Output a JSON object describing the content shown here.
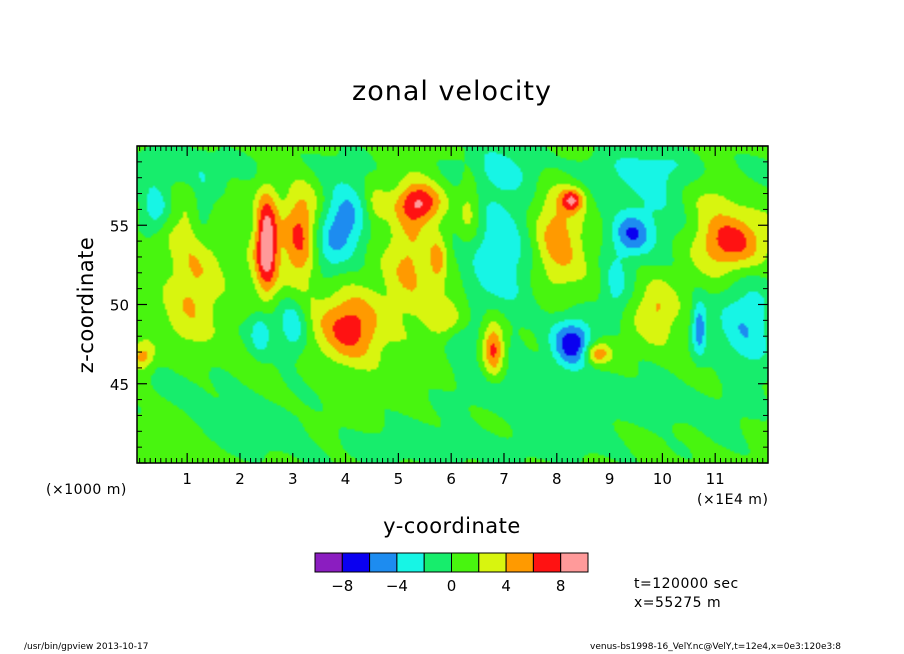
{
  "chart_data": {
    "type": "heatmap",
    "title": "zonal velocity",
    "xlabel": "y-coordinate",
    "ylabel": "z-coordinate",
    "x_unit_left": "(×1000 m)",
    "x_unit_right": "(×1E4 m)",
    "xlim": [
      0.05,
      12.0
    ],
    "ylim": [
      40,
      60
    ],
    "x_ticks": [
      {
        "value": 1,
        "label": "1"
      },
      {
        "value": 2,
        "label": "2"
      },
      {
        "value": 3,
        "label": "3"
      },
      {
        "value": 4,
        "label": "4"
      },
      {
        "value": 5,
        "label": "5"
      },
      {
        "value": 6,
        "label": "6"
      },
      {
        "value": 7,
        "label": "7"
      },
      {
        "value": 8,
        "label": "8"
      },
      {
        "value": 9,
        "label": "9"
      },
      {
        "value": 10,
        "label": "10"
      },
      {
        "value": 11,
        "label": "11"
      }
    ],
    "y_ticks": [
      {
        "value": 45,
        "label": "45"
      },
      {
        "value": 50,
        "label": "50"
      },
      {
        "value": 55,
        "label": "55"
      }
    ],
    "levels": [
      -10,
      -8,
      -6,
      -4,
      -2,
      0,
      2,
      4,
      6,
      8,
      10
    ],
    "colorbar": {
      "colors": [
        "#8b1dc0",
        "#0a00f0",
        "#1d8cf0",
        "#17f5e5",
        "#17ed6c",
        "#48f50f",
        "#d8f50f",
        "#ff9a00",
        "#ff1212",
        "#ff9a9a"
      ],
      "tick_labels": [
        "−8",
        "−4",
        "0",
        "4",
        "8"
      ],
      "tick_values": [
        -8,
        -4,
        0,
        4,
        8
      ]
    },
    "background_value": 0.8,
    "features": [
      {
        "y": 2.5,
        "z": 54.0,
        "amp": 9.5,
        "sy": 0.15,
        "sz": 2.2
      },
      {
        "y": 3.15,
        "z": 54.2,
        "amp": 6.0,
        "sy": 0.25,
        "sz": 2.3
      },
      {
        "y": 4.0,
        "z": 55.4,
        "amp": -6.0,
        "sy": 0.3,
        "sz": 1.6
      },
      {
        "y": 5.4,
        "z": 56.4,
        "amp": 7.0,
        "sy": 0.3,
        "sz": 0.9
      },
      {
        "y": 4.1,
        "z": 48.5,
        "amp": 6.0,
        "sy": 0.42,
        "sz": 1.6
      },
      {
        "y": 6.8,
        "z": 47.2,
        "amp": 7.0,
        "sy": 0.15,
        "sz": 1.3
      },
      {
        "y": 8.3,
        "z": 47.5,
        "amp": -8.0,
        "sy": 0.28,
        "sz": 1.1
      },
      {
        "y": 8.75,
        "z": 46.9,
        "amp": 6.0,
        "sy": 0.18,
        "sz": 0.5
      },
      {
        "y": 11.3,
        "z": 54.0,
        "amp": 6.5,
        "sy": 0.45,
        "sz": 1.3
      },
      {
        "y": 9.8,
        "z": 56.0,
        "amp": -3.2,
        "sy": 0.55,
        "sz": 2.0
      },
      {
        "y": 9.4,
        "z": 54.4,
        "amp": -5.2,
        "sy": 0.25,
        "sz": 0.9
      },
      {
        "y": 6.9,
        "z": 53.6,
        "amp": -4.2,
        "sy": 0.5,
        "sz": 4.0
      },
      {
        "y": 8.0,
        "z": 54.6,
        "amp": 4.8,
        "sy": 0.33,
        "sz": 2.2
      },
      {
        "y": 8.3,
        "z": 56.6,
        "amp": 6.2,
        "sy": 0.15,
        "sz": 0.5
      },
      {
        "y": 0.4,
        "z": 56.0,
        "amp": -4.5,
        "sy": 0.2,
        "sz": 1.0
      },
      {
        "y": 1.3,
        "z": 56.0,
        "amp": -3.3,
        "sy": 0.15,
        "sz": 1.4
      },
      {
        "y": 1.1,
        "z": 51.8,
        "amp": 3.6,
        "sy": 0.35,
        "sz": 3.0
      },
      {
        "y": 2.4,
        "z": 48.2,
        "amp": -4.4,
        "sy": 0.15,
        "sz": 0.9
      },
      {
        "y": 3.0,
        "z": 48.8,
        "amp": -4.4,
        "sy": 0.2,
        "sz": 1.4
      },
      {
        "y": 5.2,
        "z": 52.8,
        "amp": 3.2,
        "sy": 0.3,
        "sz": 3.0
      },
      {
        "y": 5.9,
        "z": 49.0,
        "amp": 3.2,
        "sy": 0.3,
        "sz": 1.3
      },
      {
        "y": 6.35,
        "z": 56.0,
        "amp": 3.0,
        "sy": 0.15,
        "sz": 1.8
      },
      {
        "y": 6.15,
        "z": 47.8,
        "amp": -3.2,
        "sy": 0.25,
        "sz": 0.8
      },
      {
        "y": 5.75,
        "z": 52.8,
        "amp": 3.5,
        "sy": 0.12,
        "sz": 1.2
      },
      {
        "y": 9.9,
        "z": 49.8,
        "amp": 3.3,
        "sy": 0.25,
        "sz": 1.4
      },
      {
        "y": 11.6,
        "z": 48.6,
        "amp": -4.3,
        "sy": 0.4,
        "sz": 2.5
      },
      {
        "y": 10.7,
        "z": 48.5,
        "amp": -6.0,
        "sy": 0.1,
        "sz": 1.2
      },
      {
        "y": 0.15,
        "z": 46.7,
        "amp": 4.5,
        "sy": 0.15,
        "sz": 0.6
      },
      {
        "y": 3.6,
        "z": 53.6,
        "amp": -3.0,
        "sy": 0.25,
        "sz": 1.5
      },
      {
        "y": 9.1,
        "z": 51.0,
        "amp": -3.4,
        "sy": 0.2,
        "sz": 1.5
      },
      {
        "y": 10.9,
        "z": 57.0,
        "amp": 2.2,
        "sy": 0.4,
        "sz": 1.3
      },
      {
        "y": 4.55,
        "z": 56.2,
        "amp": 2.4,
        "sy": 0.15,
        "sz": 1.0
      },
      {
        "y": 7.5,
        "z": 44.5,
        "amp": -1.6,
        "sy": 1.5,
        "sz": 1.5
      },
      {
        "y": 1.5,
        "z": 44.5,
        "amp": -1.2,
        "sy": 1.2,
        "sz": 1.5
      },
      {
        "y": 0.6,
        "z": 58.6,
        "amp": -2.0,
        "sy": 2.0,
        "sz": 1.0
      },
      {
        "y": 9.5,
        "z": 58.6,
        "amp": -2.0,
        "sy": 2.5,
        "sz": 1.0
      },
      {
        "y": 6.0,
        "z": 41.0,
        "amp": -1.6,
        "sy": 3.0,
        "sz": 1.0
      },
      {
        "y": 2.3,
        "z": 42.5,
        "amp": -1.4,
        "sy": 0.8,
        "sz": 0.8
      },
      {
        "y": 10.2,
        "z": 43.5,
        "amp": -1.6,
        "sy": 1.0,
        "sz": 1.0
      }
    ]
  },
  "time_info": {
    "line1": "t=120000 sec",
    "line2": "x=55275 m"
  },
  "footer": {
    "left": "/usr/bin/gpview  2013-10-17",
    "right": "venus-bs1998-16_VelY.nc@VelY,t=12e4,x=0e3:120e3:8"
  }
}
